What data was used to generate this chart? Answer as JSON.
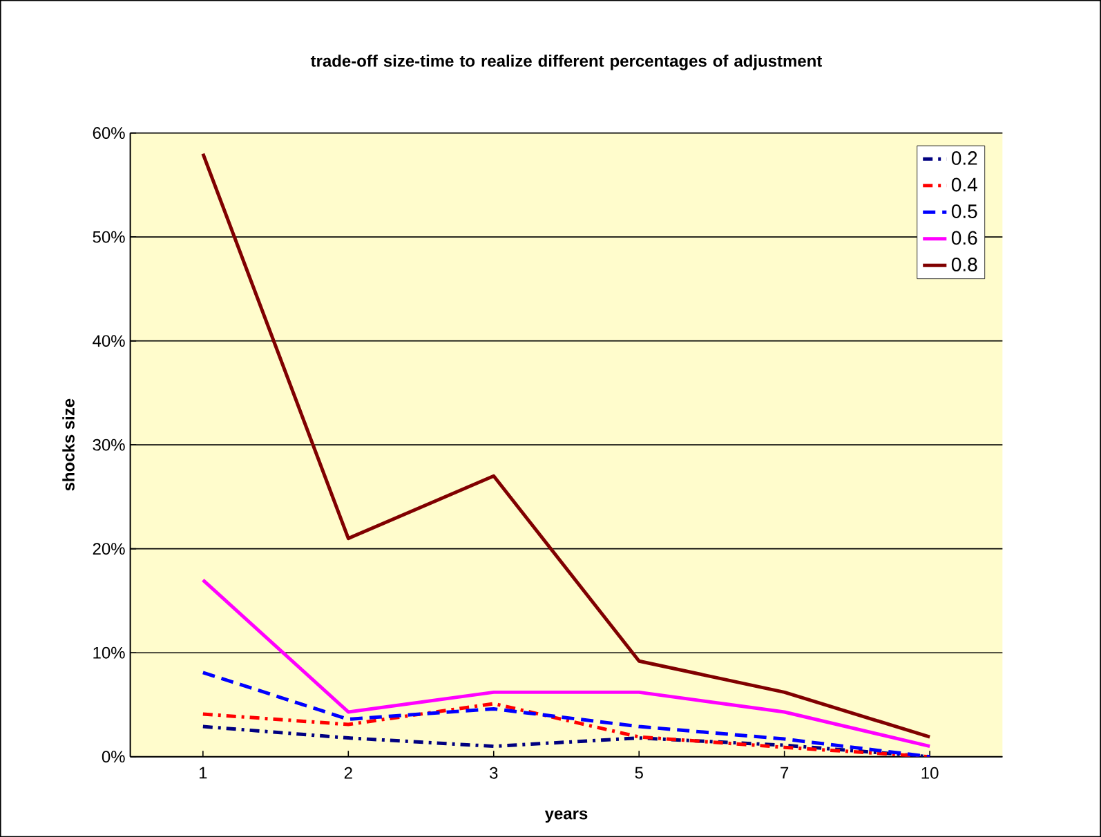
{
  "chart_data": {
    "type": "line",
    "title": "trade-off size-time to realize different percentages of adjustment",
    "xlabel": "years",
    "ylabel": "shocks size",
    "categories": [
      "1",
      "2",
      "3",
      "5",
      "7",
      "10"
    ],
    "series": [
      {
        "name": "0.2",
        "color": "#000080",
        "line_style": "dashdot",
        "values": [
          2.9,
          1.8,
          1.0,
          1.8,
          1.1,
          0
        ]
      },
      {
        "name": "0.4",
        "color": "#ff0000",
        "line_style": "dashdot",
        "values": [
          4.1,
          3.1,
          5.1,
          1.9,
          0.9,
          0
        ]
      },
      {
        "name": "0.5",
        "color": "#0000ff",
        "line_style": "dashed",
        "values": [
          8.1,
          3.6,
          4.6,
          2.9,
          1.7,
          0
        ]
      },
      {
        "name": "0.6",
        "color": "#ff00ff",
        "line_style": "solid",
        "values": [
          17,
          4.3,
          6.2,
          6.2,
          4.3,
          1.0
        ]
      },
      {
        "name": "0.8",
        "color": "#800000",
        "line_style": "solid",
        "values": [
          58,
          21,
          27,
          9.2,
          6.2,
          1.9
        ]
      }
    ],
    "ylim": [
      0,
      60
    ],
    "yticks": [
      {
        "value": 0,
        "label": "0%"
      },
      {
        "value": 10,
        "label": "10%"
      },
      {
        "value": 20,
        "label": "20%"
      },
      {
        "value": 30,
        "label": "30%"
      },
      {
        "value": 40,
        "label": "40%"
      },
      {
        "value": 50,
        "label": "50%"
      },
      {
        "value": 60,
        "label": "60%"
      }
    ],
    "grid": "y",
    "legend": "top right",
    "marker": "none"
  }
}
